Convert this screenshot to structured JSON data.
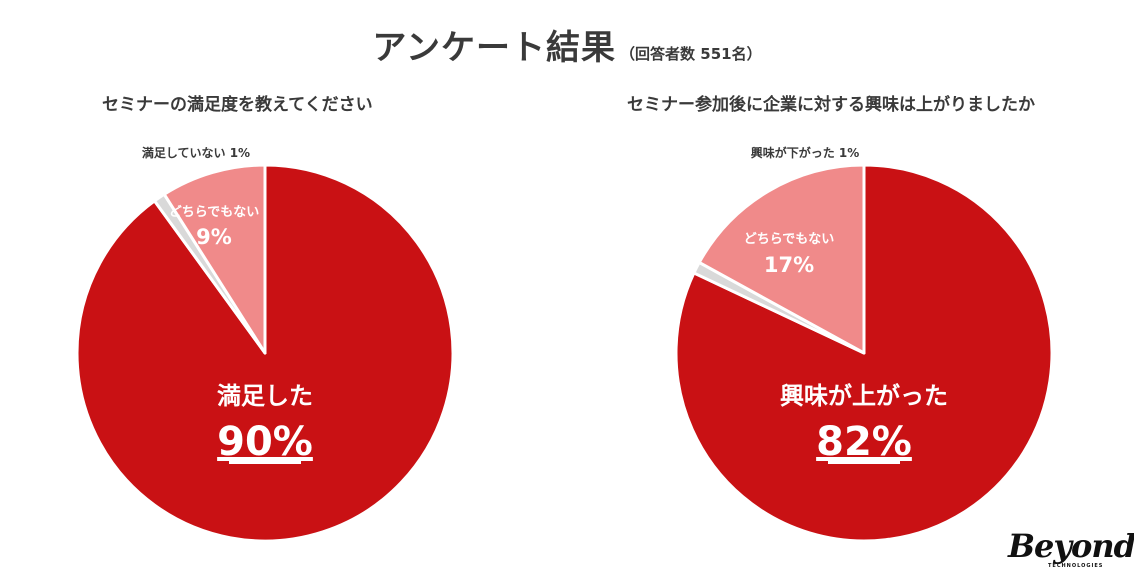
{
  "header": {
    "title": "アンケート結果",
    "subtitle": "（回答者数 551名）"
  },
  "colors": {
    "main": "#c91114",
    "neutral": "#f08a8a",
    "minor": "#d9d9d9",
    "label_dark": "#3a3a3a",
    "label_light": "#ffffff"
  },
  "chart_data": [
    {
      "type": "pie",
      "title": "セミナーの満足度を教えてください",
      "slices": [
        {
          "label": "満足した",
          "value": 90,
          "value_label": "90%"
        },
        {
          "label": "満足していない",
          "value": 1,
          "value_label": "1%"
        },
        {
          "label": "どちらでもない",
          "value": 9,
          "value_label": "9%"
        }
      ]
    },
    {
      "type": "pie",
      "title": "セミナー参加後に企業に対する興味は上がりましたか",
      "slices": [
        {
          "label": "興味が上がった",
          "value": 82,
          "value_label": "82%"
        },
        {
          "label": "興味が下がった",
          "value": 1,
          "value_label": "1%"
        },
        {
          "label": "どちらでもない",
          "value": 17,
          "value_label": "17%"
        }
      ]
    }
  ],
  "logo": {
    "name": "Beyond",
    "tagline": "TECHNOLOGIES"
  }
}
